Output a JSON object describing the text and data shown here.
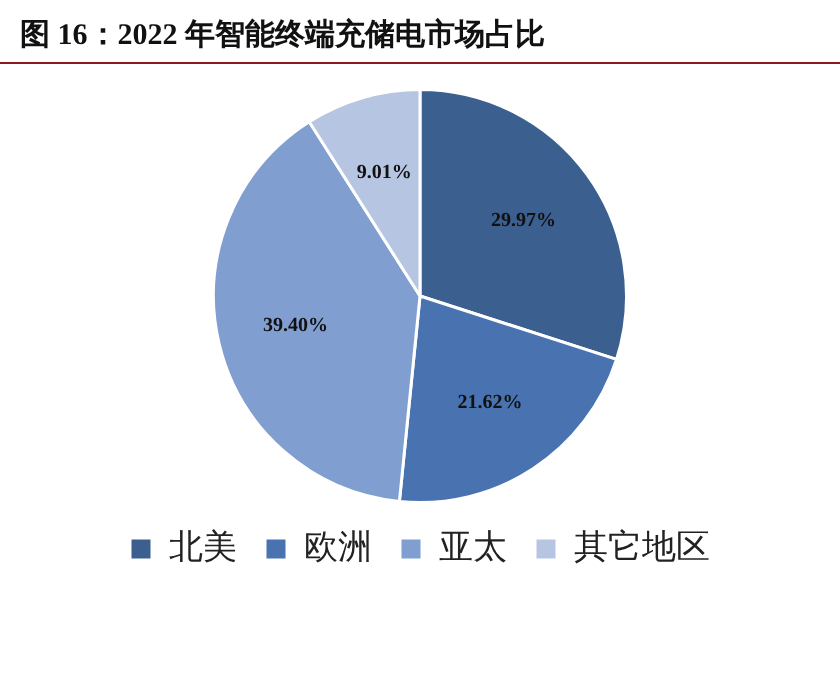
{
  "chart_data": {
    "type": "pie",
    "title": "图 16：2022 年智能终端充储电市场占比",
    "categories": [
      "北美",
      "欧洲",
      "亚太",
      "其它地区"
    ],
    "values": [
      29.97,
      21.62,
      39.4,
      9.01
    ],
    "value_labels": [
      "29.97%",
      "21.62%",
      "39.40%",
      "9.01%"
    ],
    "colors": [
      "#3b5f8e",
      "#4873b0",
      "#809fd0",
      "#b6c5e2"
    ],
    "legend": "bottom"
  }
}
